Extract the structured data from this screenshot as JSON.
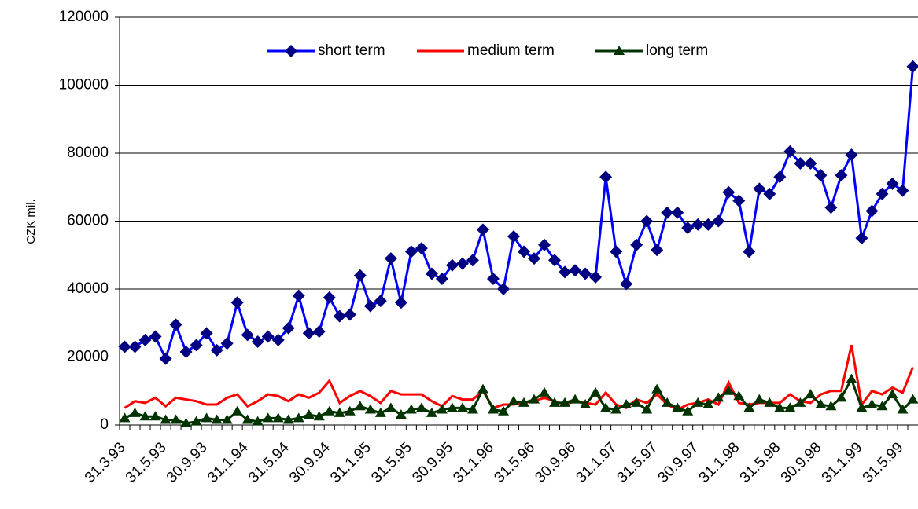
{
  "chart_data": {
    "type": "line",
    "y_label": "CZK mil.",
    "ylim": [
      0,
      120000
    ],
    "yticks": [
      0,
      20000,
      40000,
      60000,
      80000,
      100000,
      120000
    ],
    "grid": true,
    "legend": "top",
    "categories": [
      "31.3.93",
      null,
      null,
      null,
      "31.5.93",
      null,
      null,
      null,
      "30.9.93",
      null,
      null,
      null,
      "31.1.94",
      null,
      null,
      null,
      "31.5.94",
      null,
      null,
      null,
      "30.9.94",
      null,
      null,
      null,
      "31.1.95",
      null,
      null,
      null,
      "31.5.95",
      null,
      null,
      null,
      "30.9.95",
      null,
      null,
      null,
      "31.1.96",
      null,
      null,
      null,
      "31.5.96",
      null,
      null,
      null,
      "30.9.96",
      null,
      null,
      null,
      "31.1.97",
      null,
      null,
      null,
      "31.5.97",
      null,
      null,
      null,
      "30.9.97",
      null,
      null,
      null,
      "31.1.98",
      null,
      null,
      null,
      "31.5.98",
      null,
      null,
      null,
      "30.9.98",
      null,
      null,
      null,
      "31.1.99",
      null,
      null,
      null,
      "31.5.99",
      null
    ],
    "series": [
      {
        "name": "short term",
        "color": "#0000ff",
        "marker": "diamond",
        "marker_color": "#000080",
        "values": [
          23000,
          23000,
          25000,
          26000,
          19500,
          29500,
          21500,
          23500,
          27000,
          22000,
          24000,
          36000,
          26500,
          24500,
          26000,
          25000,
          28500,
          38000,
          27000,
          27500,
          37500,
          32000,
          32500,
          44000,
          35000,
          36500,
          49000,
          36000,
          51000,
          52000,
          44500,
          43000,
          47000,
          47500,
          48500,
          57500,
          43000,
          40000,
          55500,
          51000,
          49000,
          53000,
          48500,
          45000,
          45500,
          44500,
          43500,
          73000,
          51000,
          41500,
          53000,
          60000,
          51500,
          62500,
          62500,
          58000,
          59000,
          59000,
          60000,
          68500,
          66000,
          51000,
          69500,
          68000,
          73000,
          80500,
          77000,
          77000,
          73500,
          64000,
          73500,
          79500,
          55000,
          63000,
          68000,
          71000,
          69000,
          105500
        ]
      },
      {
        "name": "medium term",
        "color": "#ff0000",
        "marker": "none",
        "marker_color": "#ff0000",
        "values": [
          5000,
          7000,
          6500,
          8000,
          5500,
          8000,
          7500,
          7000,
          6000,
          6000,
          8000,
          9000,
          5500,
          7000,
          9000,
          8500,
          7000,
          9000,
          8000,
          9500,
          13000,
          6500,
          8500,
          10000,
          8500,
          6500,
          10000,
          9000,
          9000,
          9000,
          7000,
          5500,
          8500,
          7500,
          7500,
          10000,
          5000,
          6000,
          6000,
          6500,
          7000,
          8000,
          7000,
          6000,
          7000,
          6500,
          6000,
          9500,
          6000,
          5000,
          7500,
          6500,
          9000,
          6000,
          4500,
          6000,
          6500,
          7500,
          6000,
          12500,
          6500,
          6000,
          6500,
          6500,
          6500,
          9000,
          7000,
          6500,
          9000,
          10000,
          10000,
          23500,
          6000,
          10000,
          9000,
          11000,
          9500,
          17000
        ]
      },
      {
        "name": "long term",
        "color": "#003300",
        "marker": "triangle",
        "marker_color": "#003300",
        "values": [
          2000,
          3500,
          2500,
          2500,
          1500,
          1500,
          500,
          1000,
          2000,
          1500,
          1500,
          4000,
          1500,
          1000,
          2000,
          2000,
          1500,
          2000,
          3000,
          2500,
          4000,
          3500,
          4000,
          5500,
          4500,
          3500,
          5000,
          3000,
          4500,
          5000,
          3500,
          4500,
          5000,
          5000,
          4500,
          10500,
          4500,
          4000,
          7000,
          6500,
          7500,
          9500,
          6500,
          6500,
          7500,
          6000,
          9500,
          5000,
          4500,
          6000,
          6500,
          4500,
          10500,
          6500,
          5000,
          4000,
          6500,
          6000,
          8000,
          10000,
          8500,
          5000,
          7500,
          6500,
          5000,
          5000,
          6500,
          9000,
          6000,
          5500,
          8000,
          13500,
          5000,
          6000,
          5500,
          9000,
          4500,
          7500
        ]
      }
    ]
  }
}
